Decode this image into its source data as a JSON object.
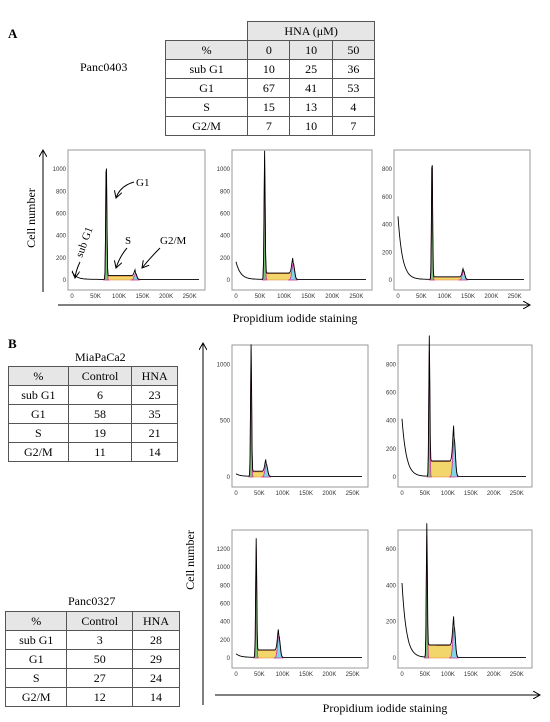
{
  "panel_a": {
    "label": "A",
    "table": {
      "title": "Panc0403",
      "group_header": "HNA (μM)",
      "columns": [
        "%",
        0,
        10,
        50
      ],
      "rows": [
        [
          "sub G1",
          10,
          25,
          36
        ],
        [
          "G1",
          67,
          41,
          53
        ],
        [
          "S",
          15,
          13,
          4
        ],
        [
          "G2/M",
          7,
          10,
          7
        ]
      ]
    },
    "y_label": "Cell number",
    "x_label": "Propidium iodide staining",
    "annotations": [
      "sub G1",
      "G1",
      "S",
      "G2/M"
    ],
    "xticks": [
      0,
      "50K",
      "100K",
      "150K",
      "200K",
      "250K"
    ],
    "plots": [
      {
        "yticks": [
          0,
          200,
          400,
          600,
          800,
          1000
        ]
      },
      {
        "yticks": [
          0,
          200,
          400,
          600,
          800,
          1000
        ]
      },
      {
        "yticks": [
          0,
          200,
          400,
          600,
          800
        ]
      }
    ]
  },
  "panel_b": {
    "label": "B",
    "tables": [
      {
        "title": "MiaPaCa2",
        "columns": [
          "%",
          "Control",
          "HNA"
        ],
        "rows": [
          [
            "sub G1",
            6,
            23
          ],
          [
            "G1",
            58,
            35
          ],
          [
            "S",
            19,
            21
          ],
          [
            "G2/M",
            11,
            14
          ]
        ]
      },
      {
        "title": "Panc0327",
        "columns": [
          "%",
          "Control",
          "HNA"
        ],
        "rows": [
          [
            "sub G1",
            3,
            28
          ],
          [
            "G1",
            50,
            29
          ],
          [
            "S",
            27,
            24
          ],
          [
            "G2/M",
            12,
            14
          ]
        ]
      }
    ],
    "y_label": "Cell number",
    "x_label": "Propidium iodide staining",
    "xticks": [
      0,
      "50K",
      "100K",
      "150K",
      "200K",
      "250K"
    ],
    "plots": [
      {
        "yticks": [
          0,
          500,
          1000
        ]
      },
      {
        "yticks": [
          0,
          200,
          400,
          600,
          800
        ]
      },
      {
        "yticks": [
          0,
          200,
          400,
          600,
          800,
          1000,
          1200
        ]
      },
      {
        "yticks": [
          0,
          200,
          400,
          600
        ]
      }
    ]
  }
}
